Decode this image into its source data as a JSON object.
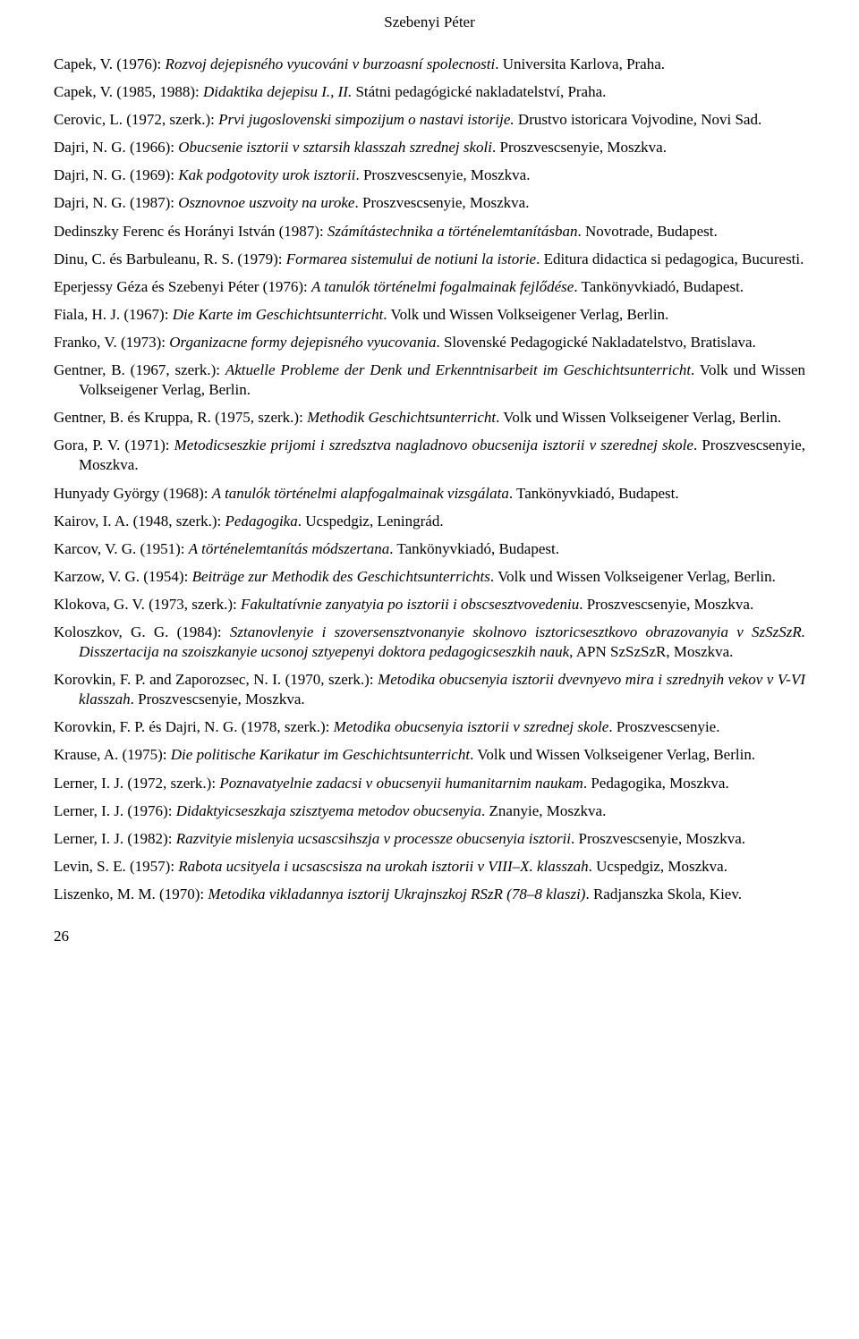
{
  "header": {
    "author": "Szebenyi Péter"
  },
  "references": [
    {
      "pre": "Capek, V. (1976): ",
      "title": "Rozvoj dejepisného vyucováni v burzoasní spolecnosti",
      "post": ". Universita Karlova, Praha."
    },
    {
      "pre": "Capek, V. (1985, 1988): ",
      "title": "Didaktika dejepisu I., II.",
      "post": " Státni pedagógické nakladatelství, Praha."
    },
    {
      "pre": "Cerovic, L. (1972, szerk.): ",
      "title": "Prvi jugoslovenski simpozijum o nastavi istorije.",
      "post": " Drustvo istoricara Vojvodine, Novi Sad."
    },
    {
      "pre": "Dajri, N. G. (1966): ",
      "title": "Obucsenie isztorii v sztarsih klasszah szrednej skoli",
      "post": ". Proszvescsenyie, Moszkva."
    },
    {
      "pre": "Dajri, N. G. (1969): ",
      "title": "Kak podgotovity urok isztorii",
      "post": ". Proszvescsenyie, Moszkva."
    },
    {
      "pre": "Dajri, N. G. (1987): ",
      "title": "Osznovnoe uszvoity na uroke",
      "post": ". Proszvescsenyie, Moszkva."
    },
    {
      "pre": "Dedinszky Ferenc és Horányi István (1987): ",
      "title": "Számítástechnika a történelemtanításban",
      "post": ". Novotrade, Budapest."
    },
    {
      "pre": "Dinu, C. és Barbuleanu, R. S. (1979): ",
      "title": "Formarea sistemului de notiuni la istorie",
      "post": ". Editura didactica si pedagogica, Bucuresti."
    },
    {
      "pre": "Eperjessy Géza és Szebenyi Péter (1976): ",
      "title": "A tanulók történelmi fogalmainak fejlődése",
      "post": ". Tankönyvkiadó, Budapest."
    },
    {
      "pre": "Fiala, H. J. (1967): ",
      "title": "Die Karte im Geschichtsunterricht",
      "post": ". Volk und Wissen Volkseigener Verlag, Berlin."
    },
    {
      "pre": "Franko, V. (1973): ",
      "title": "Organizacne formy dejepisného vyucovania",
      "post": ". Slovenské Pedagogické Nakladatelstvo, Bratislava."
    },
    {
      "pre": "Gentner, B. (1967, szerk.): ",
      "title": "Aktuelle Probleme der Denk und Erkenntnisarbeit im Geschichtsunterricht",
      "post": ". Volk und Wissen Volkseigener Verlag, Berlin."
    },
    {
      "pre": "Gentner, B. és Kruppa, R. (1975, szerk.): ",
      "title": "Methodik Geschichtsunterricht",
      "post": ". Volk und Wissen Volkseigener Verlag, Berlin."
    },
    {
      "pre": "Gora, P. V. (1971): ",
      "title": "Metodicseszkie prijomi i szredsztva nagladnovo obucsenija isztorii v szerednej skole",
      "post": ". Proszvescsenyie, Moszkva."
    },
    {
      "pre": "Hunyady György (1968): ",
      "title": "A tanulók történelmi alapfogalmainak vizsgálata",
      "post": ". Tankönyvkiadó, Budapest."
    },
    {
      "pre": "Kairov, I. A. (1948, szerk.): ",
      "title": "Pedagogika",
      "post": ". Ucspedgiz, Leningrád."
    },
    {
      "pre": "Karcov, V. G. (1951): ",
      "title": "A történelemtanítás módszertana",
      "post": ". Tankönyvkiadó, Budapest."
    },
    {
      "pre": "Karzow, V. G. (1954): ",
      "title": "Beiträge zur Methodik des Geschichtsunterrichts",
      "post": ". Volk und Wissen Volkseigener Verlag, Berlin."
    },
    {
      "pre": "Klokova, G. V. (1973, szerk.): ",
      "title": "Fakultatívnie zanyatyia po isztorii i obscsesztvovedeniu",
      "post": ". Proszvescsenyie, Moszkva."
    },
    {
      "pre": "Koloszkov, G. G. (1984): ",
      "title": "Sztanovlenyie i szoversensztvonanyie skolnovo isztoricsesztkovo obrazovanyia v SzSzSzR. Disszertacija na szoiszkanyie ucsonoj sztyepenyi doktora pedagogicseszkih nauk,",
      "post": " APN SzSzSzR, Moszkva."
    },
    {
      "pre": "Korovkin, F. P. and Zaporozsec, N. I. (1970, szerk.): ",
      "title": "Metodika obucsenyia isztorii dvevnyevo mira i szrednyih vekov v V-VI klasszah",
      "post": ". Proszvescsenyie, Moszkva."
    },
    {
      "pre": "Korovkin, F. P. és Dajri, N. G. (1978, szerk.): ",
      "title": "Metodika obucsenyia isztorii v szrednej skole",
      "post": ". Proszvescsenyie."
    },
    {
      "pre": "Krause, A. (1975): ",
      "title": "Die politische Karikatur im Geschichtsunterricht",
      "post": ". Volk und Wissen Volkseigener Verlag, Berlin."
    },
    {
      "pre": "Lerner, I. J. (1972, szerk.): ",
      "title": "Poznavatyelnie zadacsi v obucsenyii humanitarnim naukam",
      "post": ". Pedagogika, Moszkva."
    },
    {
      "pre": "Lerner, I. J. (1976): ",
      "title": "Didaktyicseszkaja szisztyema metodov obucsenyia",
      "post": ". Znanyie, Moszkva."
    },
    {
      "pre": "Lerner, I. J. (1982): ",
      "title": "Razvityie mislenyia ucsascsihszja v processze obucsenyia isztorii",
      "post": ". Proszvescsenyie, Moszkva."
    },
    {
      "pre": "Levin, S. E. (1957): ",
      "title": "Rabota ucsityela i ucsascsisza na urokah isztorii v VIII–X. klasszah",
      "post": ". Ucspedgiz, Moszkva."
    },
    {
      "pre": "Liszenko, M. M. (1970): ",
      "title": "Metodika vikladannya isztorij Ukrajnszkoj RSzR (78–8 klaszi)",
      "post": ". Radjanszka Skola, Kiev."
    }
  ],
  "pageNumber": "26"
}
